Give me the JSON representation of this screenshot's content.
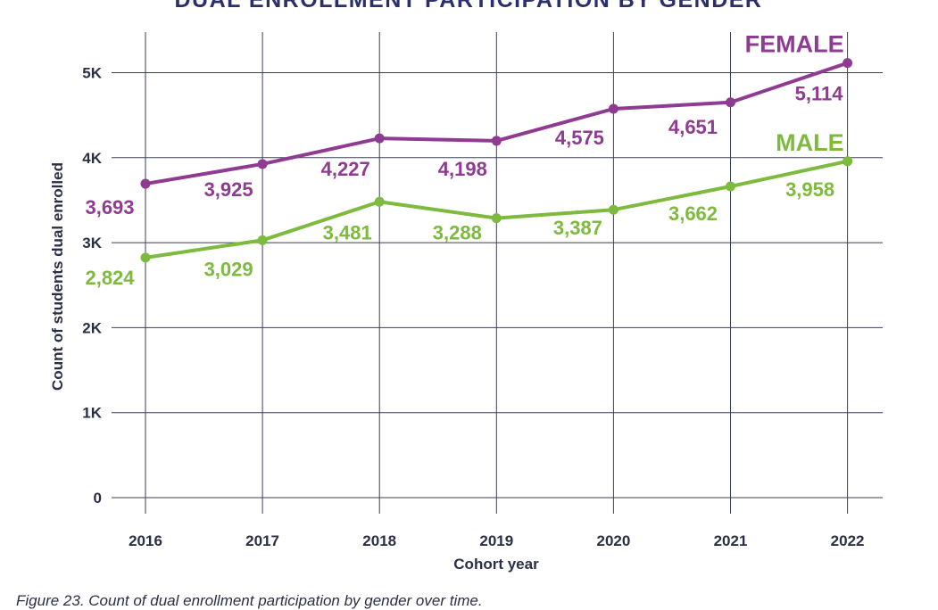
{
  "chart_data": {
    "type": "line",
    "title": "DUAL ENROLLMENT PARTICIPATION BY GENDER",
    "xlabel": "Cohort year",
    "ylabel": "Count of students dual enrolled",
    "categories": [
      "2016",
      "2017",
      "2018",
      "2019",
      "2020",
      "2021",
      "2022"
    ],
    "ylim": [
      0,
      5500
    ],
    "yticks": [
      0,
      1000,
      2000,
      3000,
      4000,
      5000
    ],
    "ytick_labels": [
      "0",
      "1K",
      "2K",
      "3K",
      "4K",
      "5K"
    ],
    "grid": true,
    "series": [
      {
        "name": "FEMALE",
        "color": "#8e3b91",
        "values": [
          3693,
          3925,
          4227,
          4198,
          4575,
          4651,
          5114
        ],
        "labels": [
          "3,693",
          "3,925",
          "4,227",
          "4,198",
          "4,575",
          "4,651",
          "5,114"
        ]
      },
      {
        "name": "MALE",
        "color": "#7dba3e",
        "values": [
          2824,
          3029,
          3481,
          3288,
          3387,
          3662,
          3958
        ],
        "labels": [
          "2,824",
          "3,029",
          "3,481",
          "3,288",
          "3,387",
          "3,662",
          "3,958"
        ]
      }
    ]
  },
  "caption": "Figure 23. Count of dual enrollment participation by gender over time."
}
